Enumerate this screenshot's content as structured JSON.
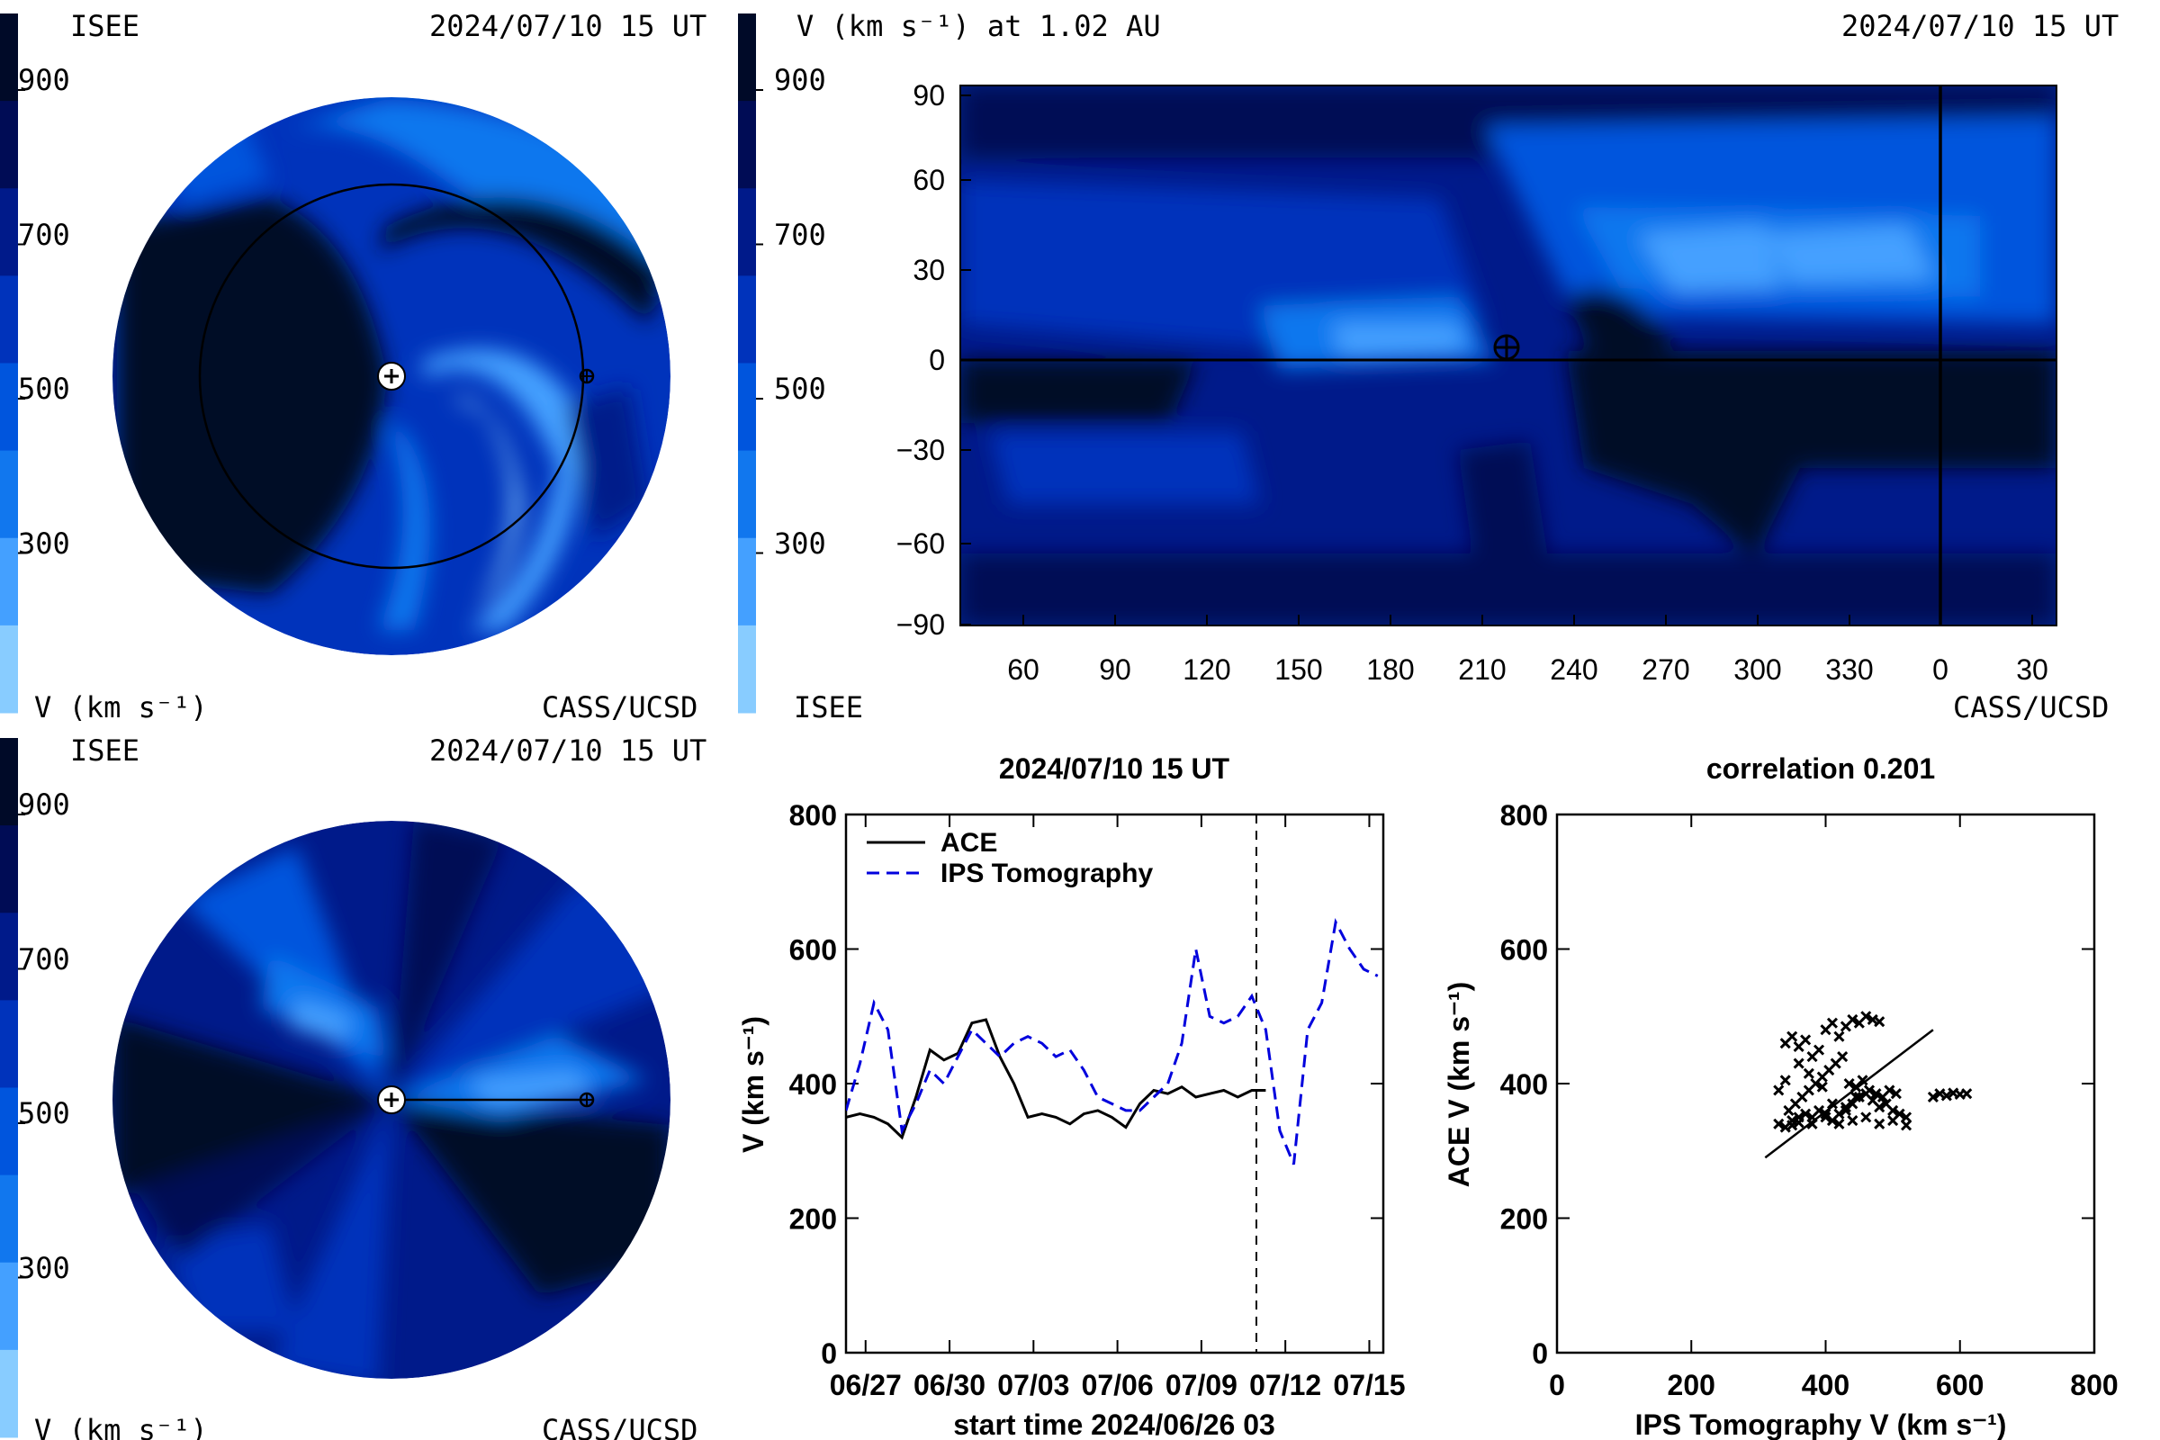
{
  "panels": {
    "ecliptic": {
      "left_label": "ISEE",
      "date": "2024/07/10 15 UT",
      "bottom_left": "V (km s⁻¹)",
      "bottom_right": "CASS/UCSD"
    },
    "synoptic": {
      "title": "V (km s⁻¹) at 1.02 AU",
      "date": "2024/07/10 15 UT",
      "bottom_left": "ISEE",
      "bottom_right": "CASS/UCSD"
    },
    "meridional": {
      "left_label": "ISEE",
      "date": "2024/07/10 15 UT",
      "bottom_left": "V (km s⁻¹)",
      "bottom_right": "CASS/UCSD"
    }
  },
  "colorbar": {
    "ticks": [
      "900",
      "700",
      "500",
      "300"
    ],
    "colors": [
      "#000a28",
      "#000c55",
      "#001a8a",
      "#0033bb",
      "#0055dd",
      "#1177ee",
      "#44a0ff",
      "#88ccff"
    ]
  },
  "colors": {
    "darkest": "#000a28",
    "dark": "#000c55",
    "mid_dark": "#001a8a",
    "mid": "#0033bb",
    "medium": "#0055dd",
    "light": "#1177ee",
    "lighter": "#44a0ff",
    "lightest": "#88ccff",
    "ips_line": "#0000dd",
    "ace_line": "#000000"
  },
  "chart_data": [
    {
      "type": "heatmap",
      "title": "V (km s⁻¹) at 1.02 AU",
      "x_tick_labels": [
        "60",
        "90",
        "120",
        "150",
        "180",
        "210",
        "240",
        "270",
        "300",
        "330",
        "0",
        "30"
      ],
      "y_tick_labels": [
        "90",
        "60",
        "30",
        "0",
        "−30",
        "−60",
        "−90"
      ],
      "ylim": [
        -90,
        90
      ]
    },
    {
      "type": "line",
      "title": "2024/07/10 15 UT",
      "xlabel": "start time 2024/06/26 03",
      "ylabel": "V (km s⁻¹)",
      "ylim": [
        0,
        800
      ],
      "x_tick_labels": [
        "06/27",
        "06/30",
        "07/03",
        "07/06",
        "07/09",
        "07/12",
        "07/15"
      ],
      "y_tick_labels": [
        "0",
        "200",
        "400",
        "600",
        "800"
      ],
      "legend_position": "top-left",
      "series": [
        {
          "name": "ACE",
          "x": [
            0,
            0.5,
            1,
            1.5,
            2,
            2.5,
            3,
            3.5,
            4,
            4.5,
            5,
            5.5,
            6,
            6.5,
            7,
            7.5,
            8,
            8.5,
            9,
            9.5,
            10,
            10.5,
            11,
            11.5,
            12,
            12.5,
            13,
            13.5,
            14,
            14.5,
            15
          ],
          "values": [
            350,
            355,
            350,
            340,
            320,
            380,
            450,
            435,
            445,
            490,
            495,
            440,
            400,
            350,
            355,
            350,
            340,
            355,
            360,
            350,
            335,
            370,
            390,
            385,
            395,
            380,
            385,
            390,
            380,
            390,
            390
          ]
        },
        {
          "name": "IPS Tomography",
          "x": [
            0,
            0.5,
            1,
            1.5,
            2,
            2.5,
            3,
            3.5,
            4,
            4.5,
            5,
            5.5,
            6,
            6.5,
            7,
            7.5,
            8,
            8.5,
            9,
            9.5,
            10,
            10.5,
            11,
            11.5,
            12,
            12.5,
            13,
            13.5,
            14,
            14.5,
            15,
            15.5,
            16,
            16.5,
            17,
            17.5,
            18,
            18.5,
            19
          ],
          "values": [
            360,
            430,
            520,
            480,
            330,
            370,
            420,
            400,
            440,
            480,
            460,
            440,
            460,
            470,
            460,
            440,
            450,
            420,
            380,
            370,
            360,
            360,
            380,
            400,
            460,
            600,
            500,
            490,
            500,
            530,
            480,
            330,
            280,
            480,
            520,
            640,
            600,
            570,
            560
          ]
        }
      ]
    },
    {
      "type": "scatter",
      "title": "correlation 0.201",
      "xlabel": "IPS Tomography V (km s⁻¹)",
      "ylabel": "ACE V (km s⁻¹)",
      "xlim": [
        0,
        800
      ],
      "ylim": [
        0,
        800
      ],
      "x_tick_labels": [
        "0",
        "200",
        "400",
        "600",
        "800"
      ],
      "y_tick_labels": [
        "0",
        "200",
        "400",
        "600",
        "800"
      ],
      "fit_line": {
        "x": [
          310,
          560
        ],
        "y": [
          290,
          480
        ]
      },
      "points": [
        [
          340,
          460
        ],
        [
          350,
          470
        ],
        [
          360,
          455
        ],
        [
          370,
          465
        ],
        [
          380,
          440
        ],
        [
          390,
          450
        ],
        [
          400,
          480
        ],
        [
          410,
          490
        ],
        [
          420,
          470
        ],
        [
          430,
          485
        ],
        [
          440,
          495
        ],
        [
          450,
          490
        ],
        [
          460,
          500
        ],
        [
          470,
          495
        ],
        [
          480,
          492
        ],
        [
          350,
          345
        ],
        [
          360,
          350
        ],
        [
          370,
          355
        ],
        [
          380,
          340
        ],
        [
          390,
          360
        ],
        [
          400,
          350
        ],
        [
          410,
          345
        ],
        [
          420,
          355
        ],
        [
          430,
          365
        ],
        [
          440,
          370
        ],
        [
          450,
          380
        ],
        [
          460,
          385
        ],
        [
          470,
          375
        ],
        [
          480,
          365
        ],
        [
          490,
          370
        ],
        [
          500,
          360
        ],
        [
          510,
          355
        ],
        [
          520,
          350
        ],
        [
          345,
          360
        ],
        [
          355,
          370
        ],
        [
          365,
          380
        ],
        [
          375,
          390
        ],
        [
          385,
          400
        ],
        [
          395,
          410
        ],
        [
          405,
          420
        ],
        [
          415,
          430
        ],
        [
          425,
          440
        ],
        [
          435,
          400
        ],
        [
          445,
          395
        ],
        [
          455,
          405
        ],
        [
          465,
          390
        ],
        [
          475,
          385
        ],
        [
          485,
          380
        ],
        [
          495,
          390
        ],
        [
          505,
          385
        ],
        [
          330,
          340
        ],
        [
          340,
          335
        ],
        [
          350,
          338
        ],
        [
          360,
          342
        ],
        [
          380,
          350
        ],
        [
          400,
          355
        ],
        [
          420,
          340
        ],
        [
          440,
          345
        ],
        [
          460,
          350
        ],
        [
          480,
          340
        ],
        [
          500,
          345
        ],
        [
          520,
          338
        ],
        [
          560,
          380
        ],
        [
          570,
          385
        ],
        [
          580,
          382
        ],
        [
          590,
          386
        ],
        [
          600,
          384
        ],
        [
          610,
          385
        ],
        [
          330,
          390
        ],
        [
          340,
          405
        ],
        [
          360,
          430
        ],
        [
          375,
          415
        ],
        [
          395,
          395
        ],
        [
          410,
          370
        ],
        [
          430,
          360
        ],
        [
          445,
          380
        ]
      ]
    }
  ]
}
